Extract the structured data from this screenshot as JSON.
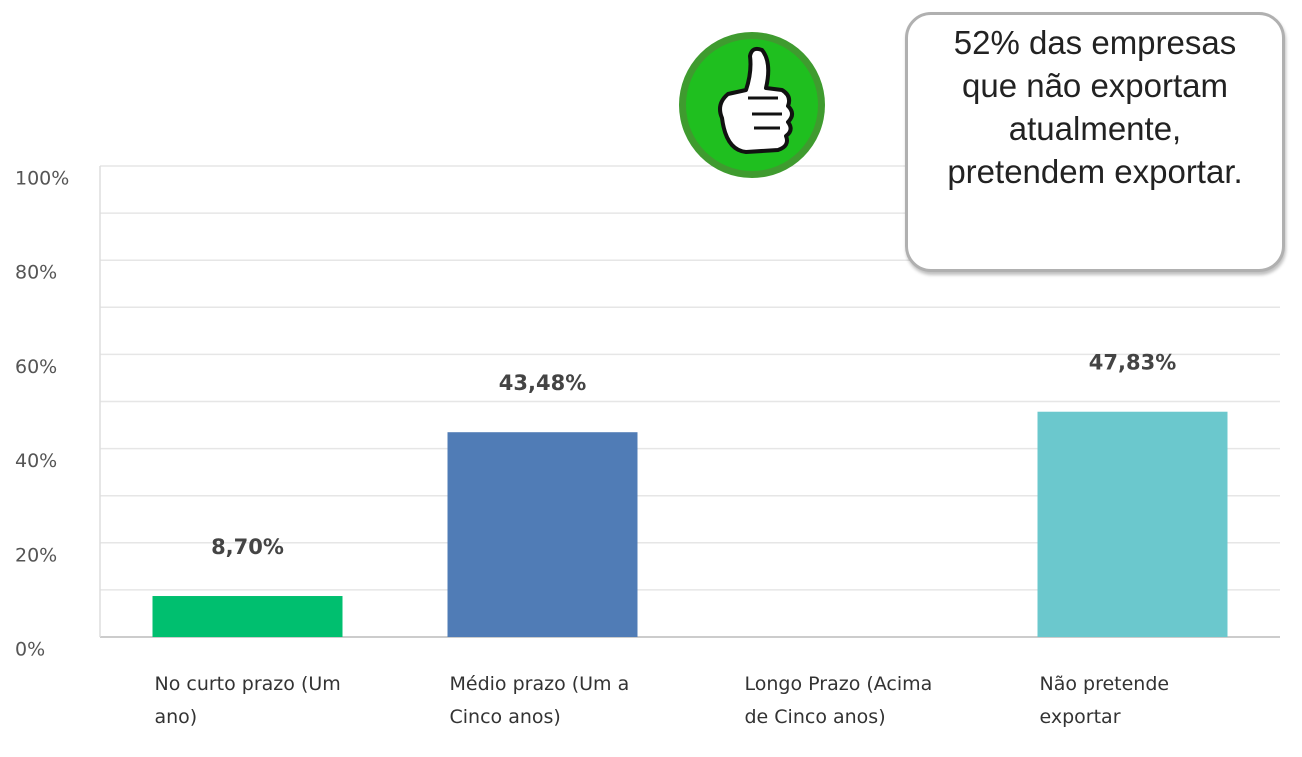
{
  "chart_data": {
    "type": "bar",
    "annotation": "52% das empresas que não exportam atualmente, pretendem exportar.",
    "categories": [
      "No curto prazo (Um ano)",
      "Médio prazo (Um a Cinco anos)",
      "Longo Prazo (Acima de Cinco anos)",
      "Não pretende exportar"
    ],
    "values": [
      8.7,
      43.48,
      0,
      47.83
    ],
    "value_labels": [
      "8,70%",
      "43,48%",
      null,
      "47,83%"
    ],
    "colors": [
      "#00bf6f",
      "#507cb6",
      "#6bc8cd",
      "#6bc8cd"
    ],
    "ylim": [
      0,
      100
    ],
    "yticks": [
      {
        "value": 0,
        "label": "0%"
      },
      {
        "value": 20,
        "label": "20%"
      },
      {
        "value": 40,
        "label": "40%"
      },
      {
        "value": 60,
        "label": "60%"
      },
      {
        "value": 80,
        "label": "80%"
      },
      {
        "value": 100,
        "label": "100%"
      }
    ],
    "minor_yticks": [
      10,
      30,
      50,
      70,
      90
    ],
    "grid": true
  }
}
